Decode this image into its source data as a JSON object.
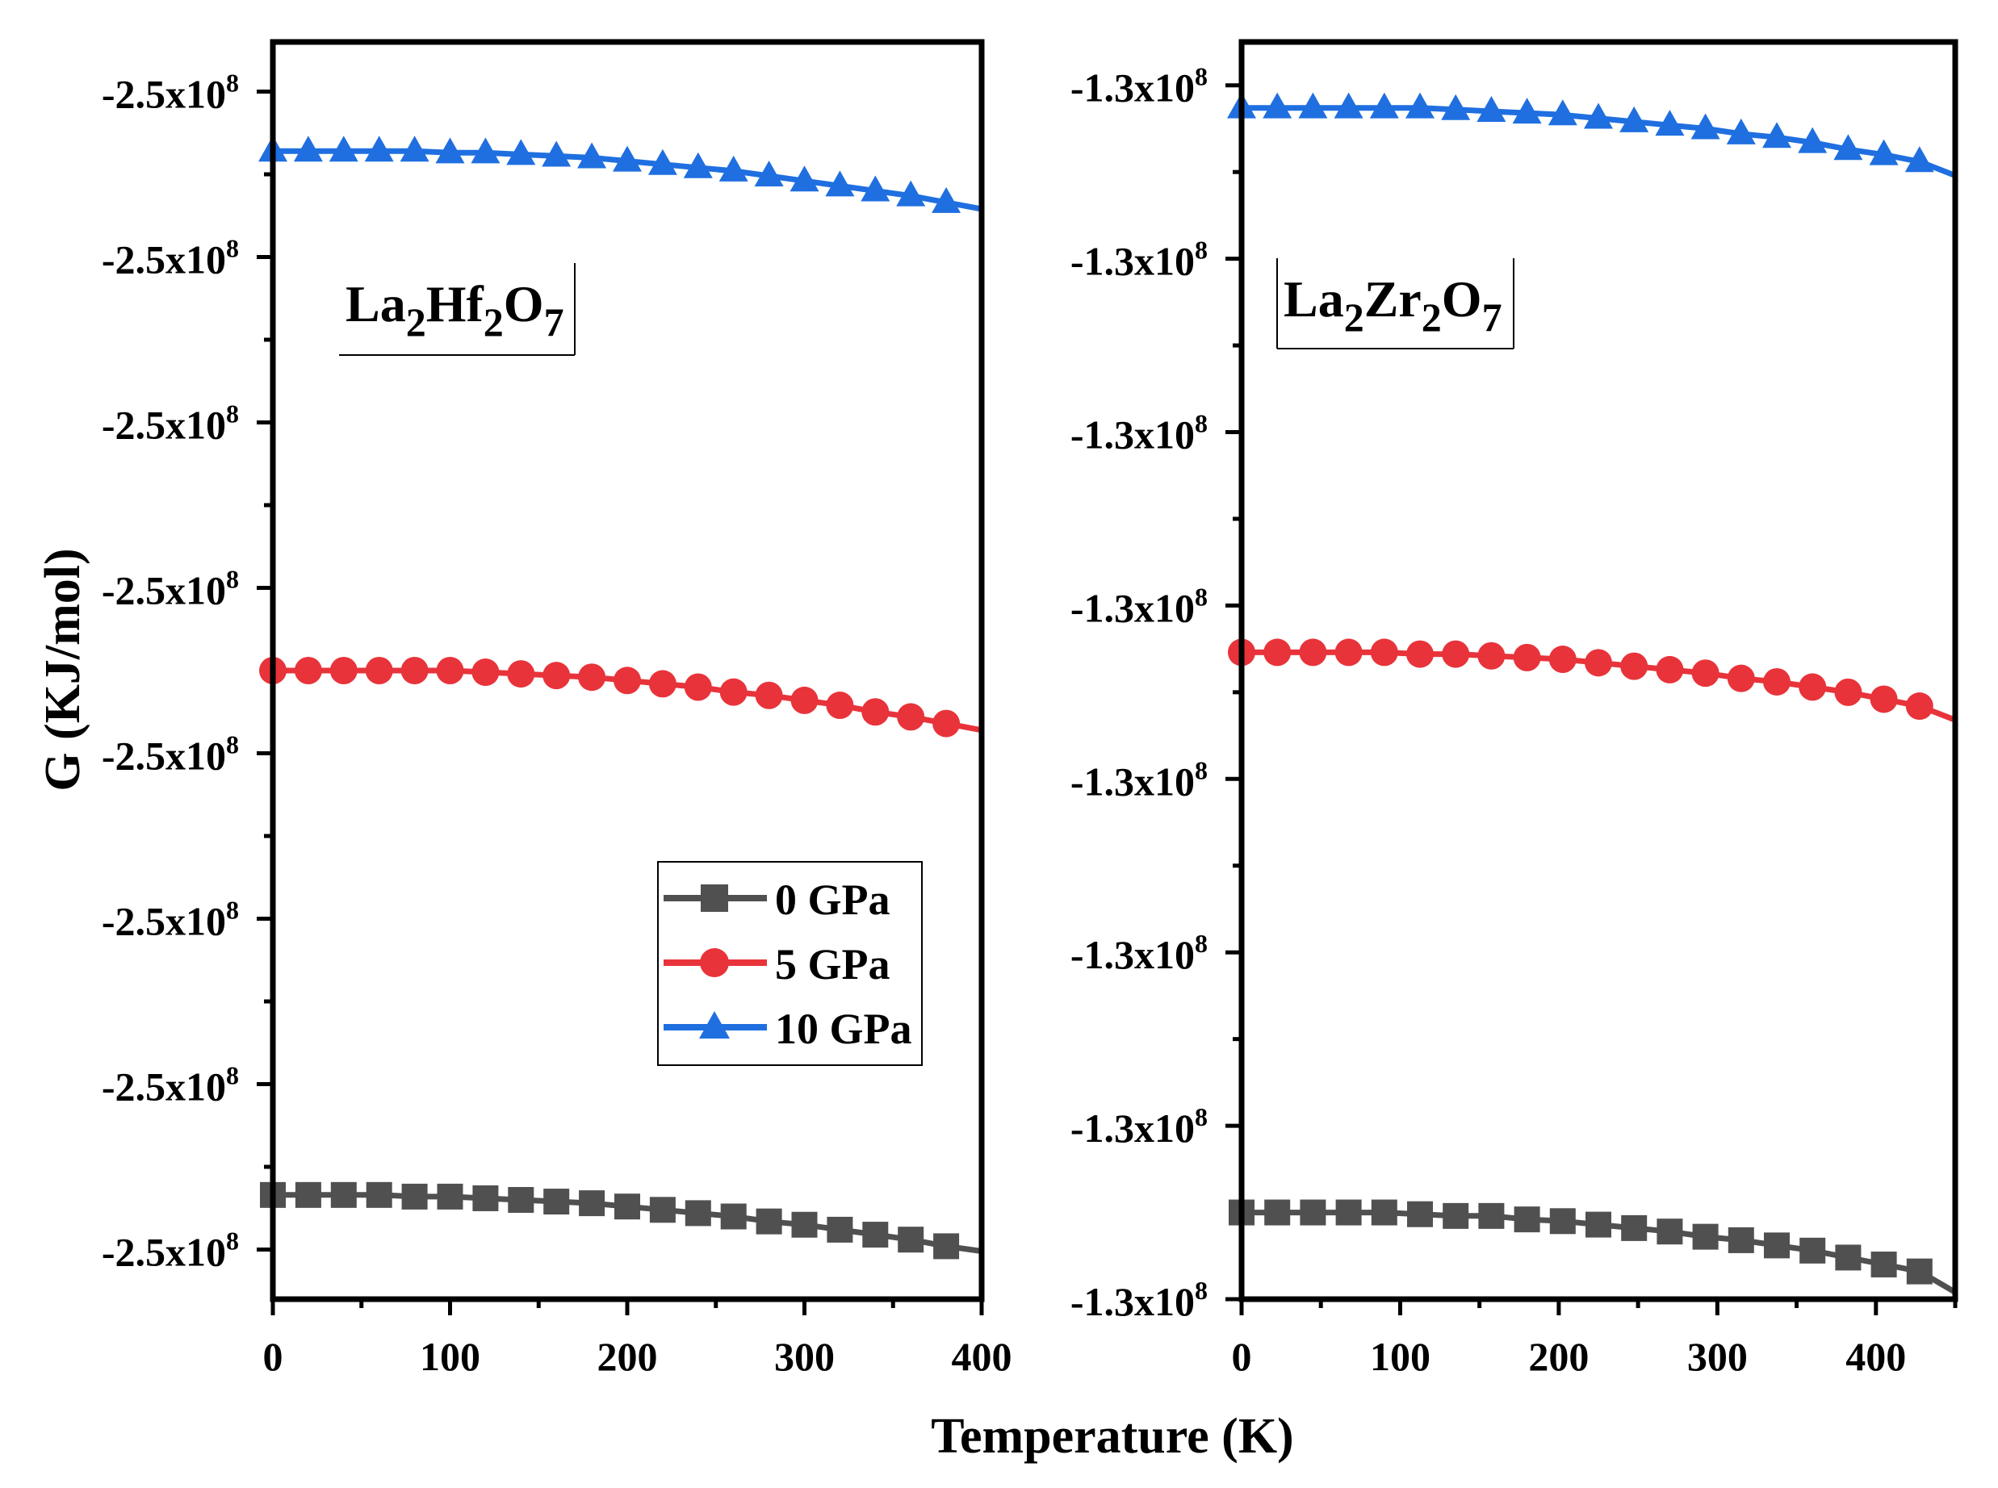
{
  "figure": {
    "y_axis_title": "G (KJ/mol)",
    "x_axis_title": "Temperature (K)"
  },
  "legend": {
    "entries": [
      "0 GPa",
      "5 GPa",
      "10 GPa"
    ]
  },
  "colors": {
    "0 GPa": "#505050",
    "5 GPa": "#e8333a",
    "10 GPa": "#1f6fe0",
    "axis": "#000000"
  },
  "markers": {
    "0 GPa": "square-icon",
    "5 GPa": "circle-icon",
    "10 GPa": "triangle-icon"
  },
  "chart_data": [
    {
      "type": "line",
      "panel": "left",
      "material": {
        "base1": "La",
        "sub1": "2",
        "base2": "Hf",
        "sub2": "2",
        "base3": "O",
        "sub3": "7"
      },
      "xlabel": "Temperature (K)",
      "ylabel": "G (KJ/mol)",
      "xlim": [
        0,
        400
      ],
      "x_ticks": [
        0,
        100,
        200,
        300,
        400
      ],
      "ylim": [
        0,
        7.6
      ],
      "y_tick_values": [
        0.3,
        1.3,
        2.3,
        3.3,
        4.3,
        5.3,
        6.3,
        7.3
      ],
      "y_tick_labels": [
        "-2.5x10^8",
        "-2.5x10^8",
        "-2.5x10^8",
        "-2.5x10^8",
        "-2.5x10^8",
        "-2.5x10^8",
        "-2.5x10^8",
        "-2.5x10^8"
      ],
      "x": [
        0,
        20,
        40,
        60,
        80,
        100,
        120,
        140,
        160,
        180,
        200,
        220,
        240,
        260,
        280,
        300,
        320,
        340,
        360,
        380,
        400
      ],
      "series": [
        {
          "name": "0 GPa",
          "values": [
            0.63,
            0.63,
            0.63,
            0.63,
            0.62,
            0.62,
            0.61,
            0.6,
            0.59,
            0.58,
            0.56,
            0.54,
            0.52,
            0.5,
            0.47,
            0.45,
            0.42,
            0.39,
            0.36,
            0.32,
            0.29
          ]
        },
        {
          "name": "5 GPa",
          "values": [
            3.8,
            3.8,
            3.8,
            3.8,
            3.8,
            3.8,
            3.79,
            3.78,
            3.77,
            3.76,
            3.74,
            3.72,
            3.7,
            3.67,
            3.65,
            3.62,
            3.59,
            3.55,
            3.52,
            3.48,
            3.44
          ]
        },
        {
          "name": "10 GPa",
          "values": [
            6.94,
            6.94,
            6.94,
            6.94,
            6.94,
            6.93,
            6.93,
            6.92,
            6.91,
            6.9,
            6.88,
            6.86,
            6.84,
            6.82,
            6.79,
            6.76,
            6.73,
            6.7,
            6.67,
            6.63,
            6.59
          ]
        }
      ]
    },
    {
      "type": "line",
      "panel": "right",
      "material": {
        "base1": "La",
        "sub1": "2",
        "base2": "Zr",
        "sub2": "2",
        "base3": "O",
        "sub3": "7"
      },
      "xlabel": "Temperature (K)",
      "ylabel": "",
      "xlim": [
        0,
        450
      ],
      "x_ticks": [
        0,
        100,
        200,
        300,
        400
      ],
      "ylim": [
        0,
        7.25
      ],
      "y_tick_values": [
        0,
        1,
        2,
        3,
        4,
        5,
        6,
        7
      ],
      "y_tick_labels": [
        "-1.3x10^8",
        "-1.3x10^8",
        "-1.3x10^8",
        "-1.3x10^8",
        "-1.3x10^8",
        "-1.3x10^8",
        "-1.3x10^8",
        "-1.3x10^8"
      ],
      "x": [
        0,
        22.5,
        45,
        67.5,
        90,
        112.5,
        135,
        157.5,
        180,
        202.5,
        225,
        247.5,
        270,
        292.5,
        315,
        337.5,
        360,
        382.5,
        405,
        427.5,
        450
      ],
      "series": [
        {
          "name": "0 GPa",
          "values": [
            0.5,
            0.5,
            0.5,
            0.5,
            0.5,
            0.49,
            0.48,
            0.48,
            0.46,
            0.45,
            0.43,
            0.41,
            0.39,
            0.36,
            0.34,
            0.31,
            0.28,
            0.24,
            0.2,
            0.16,
            0.04
          ]
        },
        {
          "name": "5 GPa",
          "values": [
            3.73,
            3.73,
            3.73,
            3.73,
            3.73,
            3.72,
            3.72,
            3.71,
            3.7,
            3.69,
            3.67,
            3.65,
            3.63,
            3.61,
            3.58,
            3.56,
            3.53,
            3.5,
            3.46,
            3.42,
            3.34
          ]
        },
        {
          "name": "10 GPa",
          "values": [
            6.87,
            6.87,
            6.87,
            6.87,
            6.87,
            6.87,
            6.86,
            6.85,
            6.84,
            6.83,
            6.81,
            6.79,
            6.77,
            6.75,
            6.72,
            6.7,
            6.67,
            6.63,
            6.6,
            6.56,
            6.48
          ]
        }
      ]
    }
  ]
}
